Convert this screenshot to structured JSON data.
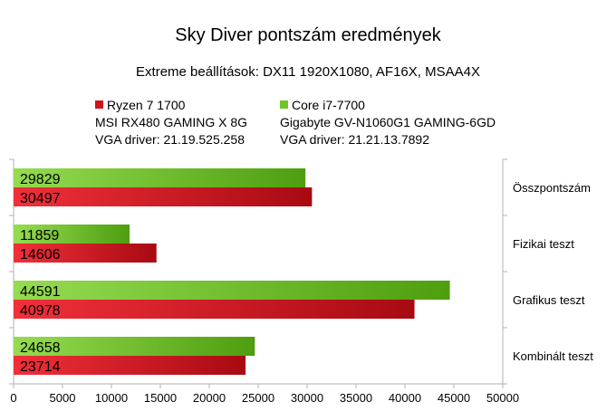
{
  "title": "Sky Diver pontszám eredmények",
  "subtitle": "Extreme beállítások: DX11 1920X1080, AF16X, MSAA4X",
  "legend": [
    {
      "lines": [
        "Ryzen 7 1700",
        "MSI RX480 GAMING X 8G",
        "VGA driver: 21.19.525.258"
      ],
      "color": "#d0141c"
    },
    {
      "lines": [
        "Core i7-7700",
        "Gigabyte GV-N1060G1 GAMING-6GD",
        "VGA driver: 21.21.13.7892"
      ],
      "color": "#6ec624"
    }
  ],
  "chart_data": {
    "type": "bar",
    "orientation": "horizontal",
    "title": "Sky Diver pontszám eredmények",
    "subtitle": "Extreme beállítások: DX11 1920X1080, AF16X, MSAA4X",
    "categories": [
      "Összpontszám",
      "Fizikai teszt",
      "Grafikus teszt",
      "Kombinált teszt"
    ],
    "series": [
      {
        "name": "Core i7-7700 / Gigabyte GV-N1060G1 GAMING-6GD",
        "color": "#6ec624",
        "values": [
          29829,
          11859,
          44591,
          24658
        ]
      },
      {
        "name": "Ryzen 7 1700 / MSI RX480 GAMING X 8G",
        "color": "#d0141c",
        "values": [
          30497,
          14606,
          40978,
          23714
        ]
      }
    ],
    "xlim": [
      0,
      50000
    ],
    "xticks": [
      0,
      5000,
      10000,
      15000,
      20000,
      25000,
      30000,
      35000,
      40000,
      45000,
      50000
    ],
    "category_label_position": "right",
    "data_labels": "inside-left",
    "grid": false,
    "legend_position": "top"
  }
}
